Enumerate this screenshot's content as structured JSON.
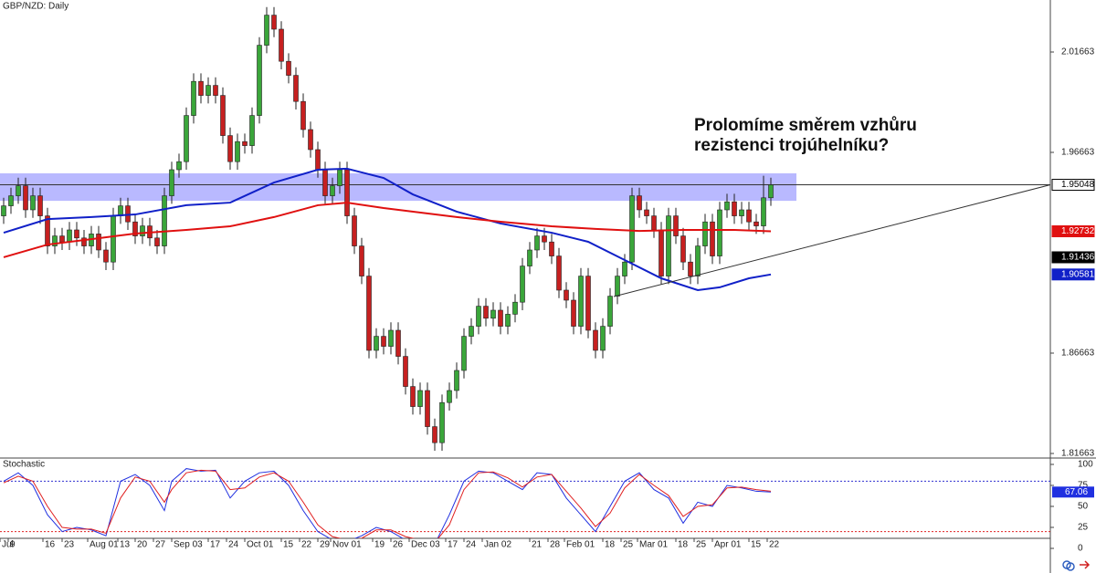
{
  "chart_data": {
    "type": "candlestick",
    "title": "GBP/NZD: Daily",
    "annotation": [
      "Prolomíme směrem vzhůru",
      "rezistenci trojúhelníku?"
    ],
    "up_color": "#3aa63a",
    "down_color": "#c62020",
    "xlim": [
      -0.5,
      143.25
    ],
    "ylim": [
      1.81436,
      2.04254
    ],
    "yticks": [
      1.81663,
      1.86663,
      1.96663,
      2.01663
    ],
    "xticks": [
      {
        "value": -0.5,
        "label": "Jul"
      },
      {
        "value": 0.625,
        "label": "9"
      },
      {
        "value": 5.375,
        "label": "16"
      },
      {
        "value": 8,
        "label": "23"
      },
      {
        "value": 11.5,
        "label": "Aug 01"
      },
      {
        "value": 15.625,
        "label": "13"
      },
      {
        "value": 18,
        "label": "20"
      },
      {
        "value": 20.5,
        "label": "27"
      },
      {
        "value": 23,
        "label": "Sep 03"
      },
      {
        "value": 28,
        "label": "17"
      },
      {
        "value": 30.5,
        "label": "24"
      },
      {
        "value": 33,
        "label": "Oct 01"
      },
      {
        "value": 38,
        "label": "15"
      },
      {
        "value": 40.5,
        "label": "22"
      },
      {
        "value": 43,
        "label": "29"
      },
      {
        "value": 44.75,
        "label": "Nov 01"
      },
      {
        "value": 50.5,
        "label": "19"
      },
      {
        "value": 53,
        "label": "26"
      },
      {
        "value": 55.5,
        "label": "Dec 03"
      },
      {
        "value": 60.5,
        "label": "17"
      },
      {
        "value": 63,
        "label": "24"
      },
      {
        "value": 65.5,
        "label": "Jan 02"
      },
      {
        "value": 72,
        "label": "21"
      },
      {
        "value": 74.5,
        "label": "28"
      },
      {
        "value": 76.75,
        "label": "Feb 01"
      },
      {
        "value": 82,
        "label": "18"
      },
      {
        "value": 84.5,
        "label": "25"
      },
      {
        "value": 86.75,
        "label": "Mar 01"
      },
      {
        "value": 92,
        "label": "18"
      },
      {
        "value": 94.5,
        "label": "25"
      },
      {
        "value": 97,
        "label": "Apr 01"
      },
      {
        "value": 102,
        "label": "15"
      },
      {
        "value": 104.5,
        "label": "22"
      }
    ],
    "ohlc": [
      [
        1.935,
        1.944,
        1.931,
        1.94
      ],
      [
        1.94,
        1.949,
        1.936,
        1.945
      ],
      [
        1.945,
        1.954,
        1.941,
        1.95
      ],
      [
        1.95,
        1.954,
        1.934,
        1.938
      ],
      [
        1.938,
        1.949,
        1.934,
        1.945
      ],
      [
        1.945,
        1.949,
        1.931,
        1.935
      ],
      [
        1.935,
        1.939,
        1.916,
        1.92
      ],
      [
        1.92,
        1.929,
        1.916,
        1.925
      ],
      [
        1.925,
        1.929,
        1.918,
        1.922
      ],
      [
        1.922,
        1.932,
        1.918,
        1.928
      ],
      [
        1.928,
        1.932,
        1.92,
        1.924
      ],
      [
        1.924,
        1.928,
        1.916,
        1.92
      ],
      [
        1.92,
        1.93,
        1.916,
        1.926
      ],
      [
        1.926,
        1.93,
        1.914,
        1.918
      ],
      [
        1.918,
        1.922,
        1.908,
        1.912
      ],
      [
        1.912,
        1.939,
        1.908,
        1.935
      ],
      [
        1.935,
        1.944,
        1.931,
        1.94
      ],
      [
        1.94,
        1.944,
        1.928,
        1.932
      ],
      [
        1.932,
        1.936,
        1.921,
        1.925
      ],
      [
        1.925,
        1.934,
        1.921,
        1.93
      ],
      [
        1.93,
        1.934,
        1.92,
        1.924
      ],
      [
        1.924,
        1.928,
        1.916,
        1.92
      ],
      [
        1.92,
        1.949,
        1.916,
        1.945
      ],
      [
        1.945,
        1.962,
        1.941,
        1.958
      ],
      [
        1.958,
        1.966,
        1.954,
        1.962
      ],
      [
        1.962,
        1.989,
        1.958,
        1.985
      ],
      [
        1.985,
        2.006,
        1.981,
        2.002
      ],
      [
        2.002,
        2.006,
        1.991,
        1.995
      ],
      [
        1.995,
        2.004,
        1.991,
        2.0
      ],
      [
        2.0,
        2.004,
        1.991,
        1.995
      ],
      [
        1.995,
        1.999,
        1.971,
        1.975
      ],
      [
        1.975,
        1.979,
        1.958,
        1.962
      ],
      [
        1.962,
        1.976,
        1.958,
        1.972
      ],
      [
        1.972,
        1.976,
        1.966,
        1.97
      ],
      [
        1.97,
        1.989,
        1.966,
        1.985
      ],
      [
        1.985,
        2.024,
        1.981,
        2.02
      ],
      [
        2.02,
        2.039,
        2.016,
        2.035
      ],
      [
        2.035,
        2.039,
        2.024,
        2.028
      ],
      [
        2.028,
        2.032,
        2.008,
        2.012
      ],
      [
        2.012,
        2.016,
        2.001,
        2.005
      ],
      [
        2.005,
        2.009,
        1.988,
        1.992
      ],
      [
        1.992,
        1.996,
        1.974,
        1.978
      ],
      [
        1.978,
        1.982,
        1.964,
        1.968
      ],
      [
        1.968,
        1.972,
        1.954,
        1.958
      ],
      [
        1.958,
        1.962,
        1.941,
        1.945
      ],
      [
        1.945,
        1.954,
        1.941,
        1.95
      ],
      [
        1.95,
        1.962,
        1.946,
        1.958
      ],
      [
        1.958,
        1.962,
        1.931,
        1.935
      ],
      [
        1.935,
        1.939,
        1.916,
        1.92
      ],
      [
        1.92,
        1.924,
        1.901,
        1.905
      ],
      [
        1.905,
        1.909,
        1.864,
        1.868
      ],
      [
        1.868,
        1.879,
        1.864,
        1.875
      ],
      [
        1.875,
        1.879,
        1.866,
        1.87
      ],
      [
        1.87,
        1.882,
        1.866,
        1.878
      ],
      [
        1.878,
        1.882,
        1.861,
        1.865
      ],
      [
        1.865,
        1.869,
        1.846,
        1.85
      ],
      [
        1.85,
        1.854,
        1.836,
        1.84
      ],
      [
        1.84,
        1.852,
        1.836,
        1.848
      ],
      [
        1.848,
        1.852,
        1.826,
        1.83
      ],
      [
        1.83,
        1.834,
        1.818,
        1.822
      ],
      [
        1.822,
        1.846,
        1.818,
        1.842
      ],
      [
        1.842,
        1.852,
        1.838,
        1.848
      ],
      [
        1.848,
        1.862,
        1.844,
        1.858
      ],
      [
        1.858,
        1.879,
        1.854,
        1.875
      ],
      [
        1.875,
        1.884,
        1.871,
        1.88
      ],
      [
        1.88,
        1.894,
        1.876,
        1.89
      ],
      [
        1.89,
        1.894,
        1.88,
        1.884
      ],
      [
        1.884,
        1.892,
        1.88,
        1.888
      ],
      [
        1.888,
        1.892,
        1.876,
        1.88
      ],
      [
        1.88,
        1.89,
        1.876,
        1.886
      ],
      [
        1.886,
        1.896,
        1.882,
        1.892
      ],
      [
        1.892,
        1.914,
        1.888,
        1.91
      ],
      [
        1.91,
        1.922,
        1.906,
        1.918
      ],
      [
        1.918,
        1.929,
        1.914,
        1.925
      ],
      [
        1.925,
        1.929,
        1.918,
        1.922
      ],
      [
        1.922,
        1.926,
        1.911,
        1.915
      ],
      [
        1.915,
        1.919,
        1.894,
        1.898
      ],
      [
        1.898,
        1.902,
        1.889,
        1.893
      ],
      [
        1.893,
        1.897,
        1.876,
        1.88
      ],
      [
        1.88,
        1.909,
        1.876,
        1.905
      ],
      [
        1.905,
        1.909,
        1.874,
        1.878
      ],
      [
        1.878,
        1.882,
        1.864,
        1.868
      ],
      [
        1.868,
        1.884,
        1.864,
        1.88
      ],
      [
        1.88,
        1.899,
        1.876,
        1.895
      ],
      [
        1.895,
        1.909,
        1.891,
        1.905
      ],
      [
        1.905,
        1.916,
        1.901,
        1.912
      ],
      [
        1.912,
        1.949,
        1.908,
        1.945
      ],
      [
        1.945,
        1.949,
        1.934,
        1.938
      ],
      [
        1.938,
        1.942,
        1.931,
        1.935
      ],
      [
        1.935,
        1.939,
        1.924,
        1.928
      ],
      [
        1.928,
        1.932,
        1.901,
        1.905
      ],
      [
        1.905,
        1.939,
        1.901,
        1.935
      ],
      [
        1.935,
        1.939,
        1.921,
        1.925
      ],
      [
        1.925,
        1.929,
        1.908,
        1.912
      ],
      [
        1.912,
        1.916,
        1.901,
        1.905
      ],
      [
        1.905,
        1.924,
        1.901,
        1.92
      ],
      [
        1.92,
        1.936,
        1.916,
        1.932
      ],
      [
        1.932,
        1.936,
        1.911,
        1.915
      ],
      [
        1.915,
        1.942,
        1.911,
        1.938
      ],
      [
        1.938,
        1.946,
        1.934,
        1.942
      ],
      [
        1.942,
        1.946,
        1.931,
        1.935
      ],
      [
        1.935,
        1.942,
        1.931,
        1.938
      ],
      [
        1.938,
        1.942,
        1.928,
        1.932
      ],
      [
        1.932,
        1.936,
        1.926,
        1.93
      ],
      [
        1.93,
        1.955,
        1.926,
        1.944
      ],
      [
        1.944,
        1.954,
        1.94,
        1.95048
      ]
    ],
    "series": [
      {
        "color": "#1020c8",
        "x": [
          0,
          6,
          12,
          18,
          25,
          31,
          37,
          43,
          47,
          52,
          56,
          62,
          68,
          75,
          80,
          85,
          90,
          95,
          98,
          102,
          105
        ],
        "values": [
          1.9266,
          1.9334,
          1.9344,
          1.9357,
          1.9403,
          1.9416,
          1.9516,
          1.958,
          1.9585,
          1.9539,
          1.9457,
          1.9371,
          1.9312,
          1.9266,
          1.9221,
          1.913,
          1.9039,
          1.898,
          1.8994,
          1.9039,
          1.90581
        ]
      },
      {
        "color": "#e01010",
        "x": [
          0,
          6,
          12,
          18,
          25,
          31,
          37,
          43,
          47,
          52,
          62,
          68,
          75,
          81,
          87,
          93,
          100,
          105
        ],
        "values": [
          1.9144,
          1.9207,
          1.9234,
          1.9262,
          1.928,
          1.9298,
          1.9344,
          1.9403,
          1.9416,
          1.9389,
          1.9344,
          1.9321,
          1.9298,
          1.9285,
          1.9275,
          1.928,
          1.928,
          1.92732
        ]
      }
    ],
    "zone": {
      "from": 1.9425,
      "to": 1.9562,
      "x_end": 108.5,
      "color": "#8080ff"
    },
    "trendline": {
      "x": [
        83.5,
        143.25
      ],
      "y": [
        1.8948,
        1.95048
      ]
    },
    "price_labels": [
      {
        "value": 1.95048,
        "color": "#000000",
        "filled": false
      },
      {
        "value": 1.92732,
        "color": "#e01010",
        "filled": true
      },
      {
        "value": 1.91436,
        "color": "#000000",
        "filled": true
      },
      {
        "value": 1.90581,
        "color": "#1020c8",
        "filled": true
      }
    ],
    "stochastic": {
      "title": "Stochastic",
      "ylim": [
        -6.5,
        106.5
      ],
      "yticks": [
        0,
        25,
        50,
        75,
        100
      ],
      "levels": [
        {
          "value": 80,
          "color": "#3030d0"
        },
        {
          "value": 20,
          "color": "#e02020"
        }
      ],
      "last_label": 67.06,
      "x": [
        0,
        2,
        4,
        6,
        8,
        10,
        12,
        14,
        16,
        18,
        20,
        22,
        23,
        25,
        27,
        29,
        31,
        33,
        35,
        37,
        39,
        41,
        43,
        45,
        47,
        49,
        51,
        53,
        55,
        57,
        59,
        61,
        63,
        65,
        67,
        69,
        71,
        73,
        75,
        77,
        79,
        81,
        83,
        85,
        87,
        89,
        91,
        93,
        95,
        97,
        99,
        101,
        103,
        105
      ],
      "series": [
        {
          "color": "#2030e0",
          "values": [
            80,
            90,
            75,
            40,
            20,
            25,
            22,
            15,
            80,
            88,
            75,
            45,
            80,
            95,
            92,
            93,
            60,
            80,
            90,
            92,
            75,
            45,
            20,
            10,
            8,
            15,
            25,
            20,
            10,
            8,
            5,
            40,
            80,
            92,
            90,
            80,
            70,
            90,
            88,
            60,
            40,
            20,
            50,
            80,
            90,
            70,
            60,
            30,
            55,
            50,
            75,
            72,
            68,
            67.06
          ]
        },
        {
          "color": "#e02020",
          "values": [
            78,
            86,
            80,
            50,
            25,
            23,
            23,
            18,
            60,
            85,
            80,
            55,
            70,
            90,
            93,
            92,
            70,
            72,
            85,
            90,
            80,
            55,
            28,
            14,
            10,
            12,
            22,
            22,
            14,
            10,
            7,
            28,
            70,
            90,
            91,
            84,
            73,
            85,
            88,
            68,
            48,
            26,
            42,
            72,
            88,
            75,
            63,
            38,
            50,
            52,
            72,
            73,
            70,
            68
          ]
        }
      ]
    }
  }
}
